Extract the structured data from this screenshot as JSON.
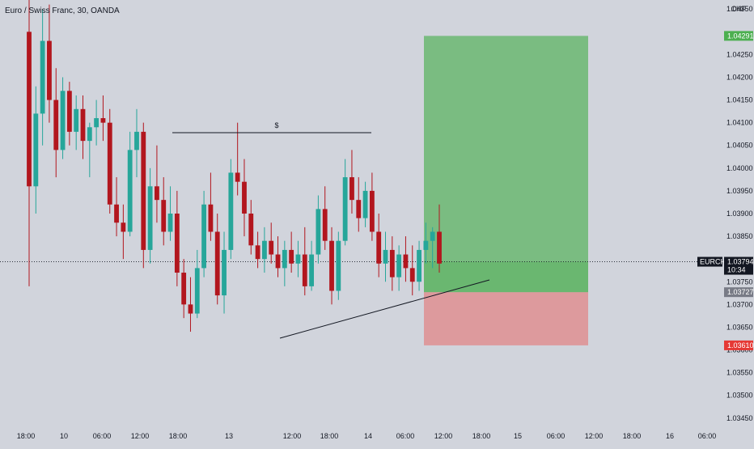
{
  "header": {
    "symbol_title": "Euro / Swiss Franc, 30, OANDA",
    "currency": "CHF"
  },
  "colors": {
    "background": "#d1d4dc",
    "up": "#26a69a",
    "down": "#ef5350",
    "candle_dark_down": "#b2161e",
    "target_zone": "#4caf50",
    "stop_zone": "#e57373",
    "price_line": "#131722",
    "symbol_tag": "#131722",
    "target_tag": "#4caf50",
    "stop_tag": "#e53935",
    "entry_tag": "#787b86"
  },
  "price_scale": {
    "ticks": [
      "1.04350",
      "1.04250",
      "1.04200",
      "1.04150",
      "1.04100",
      "1.04050",
      "1.04000",
      "1.03950",
      "1.03900",
      "1.03850",
      "1.03750",
      "1.03700",
      "1.03650",
      "1.03600",
      "1.03550",
      "1.03500",
      "1.03450"
    ]
  },
  "time_scale": {
    "ticks": [
      "18:00",
      "10",
      "06:00",
      "12:00",
      "18:00",
      "13",
      "12:00",
      "18:00",
      "14",
      "06:00",
      "12:00",
      "18:00",
      "15",
      "06:00",
      "12:00",
      "18:00",
      "16",
      "06:00"
    ]
  },
  "tags": {
    "target": {
      "label": "1.04291"
    },
    "current": {
      "symbol": "EURCHF",
      "price": "1.03794",
      "countdown": "10:34"
    },
    "entry": {
      "label": "1.03727"
    },
    "stop": {
      "label": "1.03610"
    }
  },
  "annotations": {
    "liquidity_label": "$"
  },
  "chart_data": {
    "type": "candlestick",
    "timeframe": "30",
    "y_range": [
      1.0343,
      1.0437
    ],
    "current_price": 1.03794,
    "position": {
      "entry": 1.03727,
      "target": 1.04291,
      "stop": 1.0361
    },
    "candles": [
      {
        "o": 1.043,
        "h": 1.0437,
        "l": 1.0374,
        "c": 1.0396
      },
      {
        "o": 1.0396,
        "h": 1.0418,
        "l": 1.039,
        "c": 1.0412
      },
      {
        "o": 1.0412,
        "h": 1.0435,
        "l": 1.0405,
        "c": 1.0428
      },
      {
        "o": 1.0428,
        "h": 1.0436,
        "l": 1.041,
        "c": 1.0415
      },
      {
        "o": 1.0415,
        "h": 1.0422,
        "l": 1.0398,
        "c": 1.0404
      },
      {
        "o": 1.0404,
        "h": 1.042,
        "l": 1.0402,
        "c": 1.0417
      },
      {
        "o": 1.0417,
        "h": 1.0419,
        "l": 1.0405,
        "c": 1.0408
      },
      {
        "o": 1.0408,
        "h": 1.0416,
        "l": 1.0404,
        "c": 1.0413
      },
      {
        "o": 1.0413,
        "h": 1.0416,
        "l": 1.0402,
        "c": 1.0406
      },
      {
        "o": 1.0406,
        "h": 1.041,
        "l": 1.0398,
        "c": 1.0409
      },
      {
        "o": 1.0409,
        "h": 1.0415,
        "l": 1.0405,
        "c": 1.0411
      },
      {
        "o": 1.0411,
        "h": 1.0416,
        "l": 1.0406,
        "c": 1.041
      },
      {
        "o": 1.041,
        "h": 1.0413,
        "l": 1.039,
        "c": 1.0392
      },
      {
        "o": 1.0392,
        "h": 1.0398,
        "l": 1.0385,
        "c": 1.0388
      },
      {
        "o": 1.0388,
        "h": 1.0392,
        "l": 1.038,
        "c": 1.0386
      },
      {
        "o": 1.0386,
        "h": 1.0408,
        "l": 1.0385,
        "c": 1.0404
      },
      {
        "o": 1.0404,
        "h": 1.0413,
        "l": 1.0398,
        "c": 1.0408
      },
      {
        "o": 1.0408,
        "h": 1.041,
        "l": 1.0378,
        "c": 1.0382
      },
      {
        "o": 1.0382,
        "h": 1.04,
        "l": 1.0379,
        "c": 1.0396
      },
      {
        "o": 1.0396,
        "h": 1.0405,
        "l": 1.0388,
        "c": 1.0393
      },
      {
        "o": 1.0393,
        "h": 1.0398,
        "l": 1.0383,
        "c": 1.0386
      },
      {
        "o": 1.0386,
        "h": 1.0396,
        "l": 1.0384,
        "c": 1.039
      },
      {
        "o": 1.039,
        "h": 1.0395,
        "l": 1.0374,
        "c": 1.0377
      },
      {
        "o": 1.0377,
        "h": 1.038,
        "l": 1.0367,
        "c": 1.037
      },
      {
        "o": 1.037,
        "h": 1.0376,
        "l": 1.0364,
        "c": 1.0368
      },
      {
        "o": 1.0368,
        "h": 1.0382,
        "l": 1.0367,
        "c": 1.0378
      },
      {
        "o": 1.0378,
        "h": 1.0395,
        "l": 1.0376,
        "c": 1.0392
      },
      {
        "o": 1.0392,
        "h": 1.0399,
        "l": 1.0384,
        "c": 1.0386
      },
      {
        "o": 1.0386,
        "h": 1.039,
        "l": 1.037,
        "c": 1.0372
      },
      {
        "o": 1.0372,
        "h": 1.0386,
        "l": 1.0368,
        "c": 1.0382
      },
      {
        "o": 1.0382,
        "h": 1.0402,
        "l": 1.038,
        "c": 1.0399
      },
      {
        "o": 1.0399,
        "h": 1.041,
        "l": 1.0394,
        "c": 1.0397
      },
      {
        "o": 1.0397,
        "h": 1.0402,
        "l": 1.0385,
        "c": 1.039
      },
      {
        "o": 1.039,
        "h": 1.0393,
        "l": 1.0381,
        "c": 1.0383
      },
      {
        "o": 1.0383,
        "h": 1.0386,
        "l": 1.0378,
        "c": 1.038
      },
      {
        "o": 1.038,
        "h": 1.0387,
        "l": 1.0377,
        "c": 1.0384
      },
      {
        "o": 1.0384,
        "h": 1.0388,
        "l": 1.0379,
        "c": 1.0381
      },
      {
        "o": 1.0381,
        "h": 1.0385,
        "l": 1.0376,
        "c": 1.0378
      },
      {
        "o": 1.0378,
        "h": 1.0384,
        "l": 1.0374,
        "c": 1.0382
      },
      {
        "o": 1.0382,
        "h": 1.0386,
        "l": 1.0377,
        "c": 1.0379
      },
      {
        "o": 1.0379,
        "h": 1.0384,
        "l": 1.0376,
        "c": 1.0381
      },
      {
        "o": 1.0381,
        "h": 1.0387,
        "l": 1.0372,
        "c": 1.0374
      },
      {
        "o": 1.0374,
        "h": 1.0384,
        "l": 1.0373,
        "c": 1.0381
      },
      {
        "o": 1.0381,
        "h": 1.0394,
        "l": 1.0379,
        "c": 1.0391
      },
      {
        "o": 1.0391,
        "h": 1.0396,
        "l": 1.0382,
        "c": 1.0384
      },
      {
        "o": 1.0384,
        "h": 1.0387,
        "l": 1.037,
        "c": 1.0373
      },
      {
        "o": 1.0373,
        "h": 1.0386,
        "l": 1.0371,
        "c": 1.0384
      },
      {
        "o": 1.0384,
        "h": 1.0402,
        "l": 1.0383,
        "c": 1.0398
      },
      {
        "o": 1.0398,
        "h": 1.0404,
        "l": 1.039,
        "c": 1.0393
      },
      {
        "o": 1.0393,
        "h": 1.0398,
        "l": 1.0386,
        "c": 1.0389
      },
      {
        "o": 1.0389,
        "h": 1.0397,
        "l": 1.0387,
        "c": 1.0395
      },
      {
        "o": 1.0395,
        "h": 1.0399,
        "l": 1.0384,
        "c": 1.0386
      },
      {
        "o": 1.0386,
        "h": 1.039,
        "l": 1.0376,
        "c": 1.0379
      },
      {
        "o": 1.0379,
        "h": 1.0386,
        "l": 1.0375,
        "c": 1.0382
      },
      {
        "o": 1.0382,
        "h": 1.0385,
        "l": 1.0373,
        "c": 1.0376
      },
      {
        "o": 1.0376,
        "h": 1.0383,
        "l": 1.0373,
        "c": 1.0381
      },
      {
        "o": 1.0381,
        "h": 1.0385,
        "l": 1.0375,
        "c": 1.0378
      },
      {
        "o": 1.0378,
        "h": 1.0383,
        "l": 1.0372,
        "c": 1.0375
      },
      {
        "o": 1.0375,
        "h": 1.0384,
        "l": 1.0373,
        "c": 1.0382
      },
      {
        "o": 1.0382,
        "h": 1.0388,
        "l": 1.0379,
        "c": 1.0384
      },
      {
        "o": 1.0384,
        "h": 1.0387,
        "l": 1.0378,
        "c": 1.0386
      },
      {
        "o": 1.0386,
        "h": 1.0392,
        "l": 1.0377,
        "c": 1.0379
      }
    ]
  }
}
